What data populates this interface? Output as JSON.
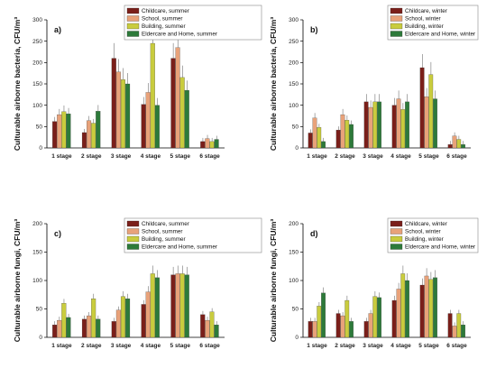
{
  "colors": {
    "childcare": "#7a1f1a",
    "school": "#e8a27a",
    "building": "#c9cc3e",
    "eldercare": "#2d7a3a"
  },
  "chart_data": [
    {
      "type": "bar",
      "panel_label": "a)",
      "ylabel": "Culturable airborne bacteria, CFU/m³",
      "ylim": [
        0,
        300
      ],
      "yticks": [
        0,
        50,
        100,
        150,
        200,
        250,
        300
      ],
      "categories": [
        "1 stage",
        "2 stage",
        "3 stage",
        "4 stage",
        "5 stage",
        "6 stage"
      ],
      "legend_position": "top-center",
      "series": [
        {
          "name": "Childcare, summer",
          "color_key": "childcare",
          "values": [
            62,
            36,
            210,
            102,
            210,
            15
          ]
        },
        {
          "name": "School, summer",
          "color_key": "school",
          "values": [
            78,
            64,
            178,
            130,
            235,
            22
          ]
        },
        {
          "name": "Building, summer",
          "color_key": "building",
          "values": [
            85,
            58,
            160,
            245,
            165,
            15
          ]
        },
        {
          "name": "Eldercare and Home, summer",
          "color_key": "eldercare",
          "values": [
            80,
            86,
            150,
            100,
            135,
            20
          ]
        }
      ]
    },
    {
      "type": "bar",
      "panel_label": "b)",
      "ylabel": "Culturable airborne bacteria, CFU/m³",
      "ylim": [
        0,
        300
      ],
      "yticks": [
        0,
        50,
        100,
        150,
        200,
        250,
        300
      ],
      "categories": [
        "1 stage",
        "2 stage",
        "3 stage",
        "4 stage",
        "5 stage",
        "6 stage"
      ],
      "legend_position": "top-right",
      "series": [
        {
          "name": "Childcare, winter",
          "color_key": "childcare",
          "values": [
            35,
            42,
            108,
            100,
            188,
            8
          ]
        },
        {
          "name": "School, winter",
          "color_key": "school",
          "values": [
            70,
            78,
            95,
            115,
            120,
            28
          ]
        },
        {
          "name": "Building, winter",
          "color_key": "building",
          "values": [
            48,
            65,
            108,
            90,
            172,
            20
          ]
        },
        {
          "name": "Eldercare and Home, winter",
          "color_key": "eldercare",
          "values": [
            15,
            55,
            108,
            108,
            115,
            8
          ]
        }
      ]
    },
    {
      "type": "bar",
      "panel_label": "c)",
      "ylabel": "Culturable airborne fungi, CFU/m³",
      "ylim": [
        0,
        200
      ],
      "yticks": [
        0,
        50,
        100,
        150,
        200
      ],
      "categories": [
        "1 stage",
        "2 stage",
        "3 stage",
        "4 stage",
        "5 stage",
        "6 stage"
      ],
      "legend_position": "top-center",
      "series": [
        {
          "name": "Childcare, summer",
          "color_key": "childcare",
          "values": [
            22,
            32,
            28,
            58,
            110,
            40
          ]
        },
        {
          "name": "School, summer",
          "color_key": "school",
          "values": [
            30,
            38,
            48,
            80,
            112,
            30
          ]
        },
        {
          "name": "Building, summer",
          "color_key": "building",
          "values": [
            60,
            68,
            72,
            112,
            112,
            45
          ]
        },
        {
          "name": "Eldercare and Home, summer",
          "color_key": "eldercare",
          "values": [
            35,
            32,
            68,
            105,
            110,
            22
          ]
        }
      ]
    },
    {
      "type": "bar",
      "panel_label": "d)",
      "ylabel": "Culturable airborne fungi, CFU/m³",
      "ylim": [
        0,
        200
      ],
      "yticks": [
        0,
        50,
        100,
        150,
        200
      ],
      "categories": [
        "1 stage",
        "2 stage",
        "3 stage",
        "4 stage",
        "5 stage",
        "6 stage"
      ],
      "legend_position": "top-right",
      "series": [
        {
          "name": "Childcare, winter",
          "color_key": "childcare",
          "values": [
            28,
            42,
            28,
            65,
            92,
            42
          ]
        },
        {
          "name": "School, winter",
          "color_key": "school",
          "values": [
            28,
            38,
            42,
            85,
            108,
            20
          ]
        },
        {
          "name": "Building, winter",
          "color_key": "building",
          "values": [
            55,
            65,
            72,
            112,
            102,
            42
          ]
        },
        {
          "name": "Eldercare and Home, winter",
          "color_key": "eldercare",
          "values": [
            78,
            28,
            70,
            100,
            105,
            22
          ]
        }
      ]
    }
  ]
}
